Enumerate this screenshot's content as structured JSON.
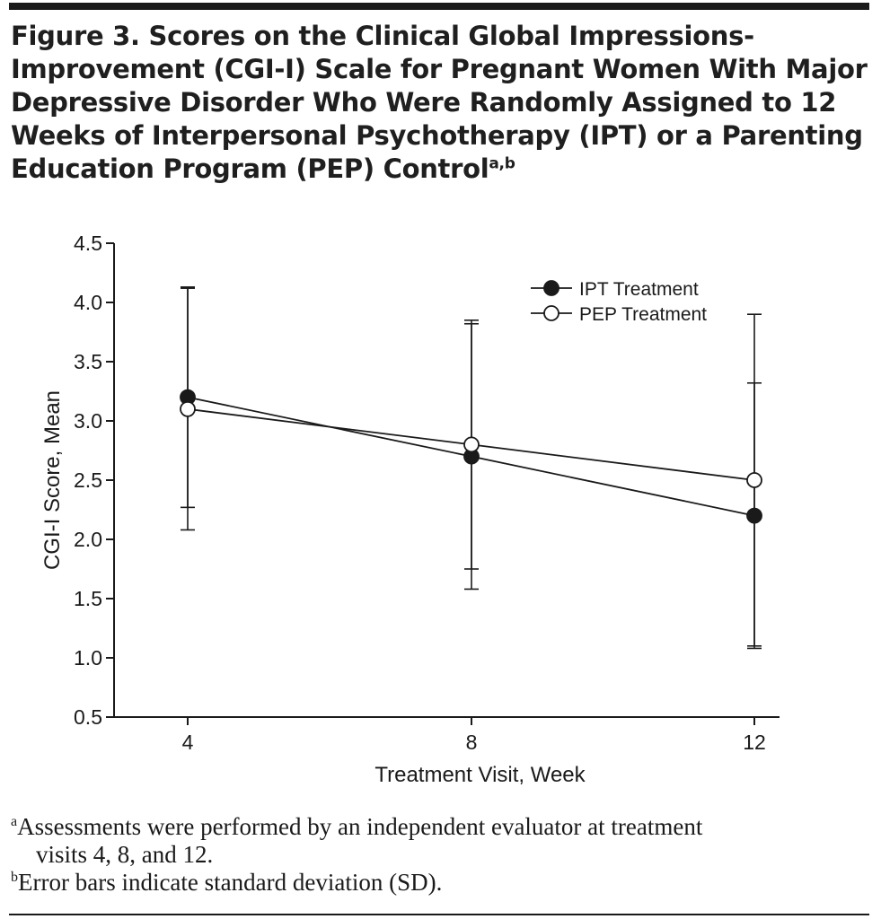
{
  "figure": {
    "title": "Figure 3. Scores on the Clinical Global Impressions-Improvement (CGI-I) Scale for Pregnant Women With Major Depressive Disorder Who Were Randomly Assigned to 12 Weeks of Interpersonal Psychotherapy (IPT) or a Parenting Education Program (PEP) Control",
    "title_sup": "a,b"
  },
  "chart_data": {
    "type": "line",
    "title": "",
    "xlabel": "Treatment Visit, Week",
    "ylabel": "CGI-I Score, Mean",
    "x": [
      4,
      8,
      12
    ],
    "x_tick_labels": [
      "4",
      "8",
      "12"
    ],
    "ylim": [
      0.5,
      4.5
    ],
    "y_ticks": [
      0.5,
      1.0,
      1.5,
      2.0,
      2.5,
      3.0,
      3.5,
      4.0,
      4.5
    ],
    "y_tick_labels": [
      "0.5",
      "1.0",
      "1.5",
      "2.0",
      "2.5",
      "3.0",
      "3.5",
      "4.0",
      "4.5"
    ],
    "grid": false,
    "legend_position": "top-right",
    "series": [
      {
        "name": "IPT Treatment",
        "marker": "filled-circle",
        "color": "#1a1a1a",
        "values": [
          3.2,
          2.7,
          2.2
        ],
        "sd": [
          0.93,
          1.12,
          1.12
        ]
      },
      {
        "name": "PEP Treatment",
        "marker": "open-circle",
        "color": "#1a1a1a",
        "values": [
          3.1,
          2.8,
          2.5
        ],
        "sd": [
          1.02,
          1.05,
          1.4
        ]
      }
    ]
  },
  "footnotes": {
    "a_mark": "a",
    "a_line1": "Assessments were performed by an independent evaluator at treatment",
    "a_line2": "visits 4, 8, and 12.",
    "b_mark": "b",
    "b_text": "Error bars indicate standard deviation (SD)."
  }
}
